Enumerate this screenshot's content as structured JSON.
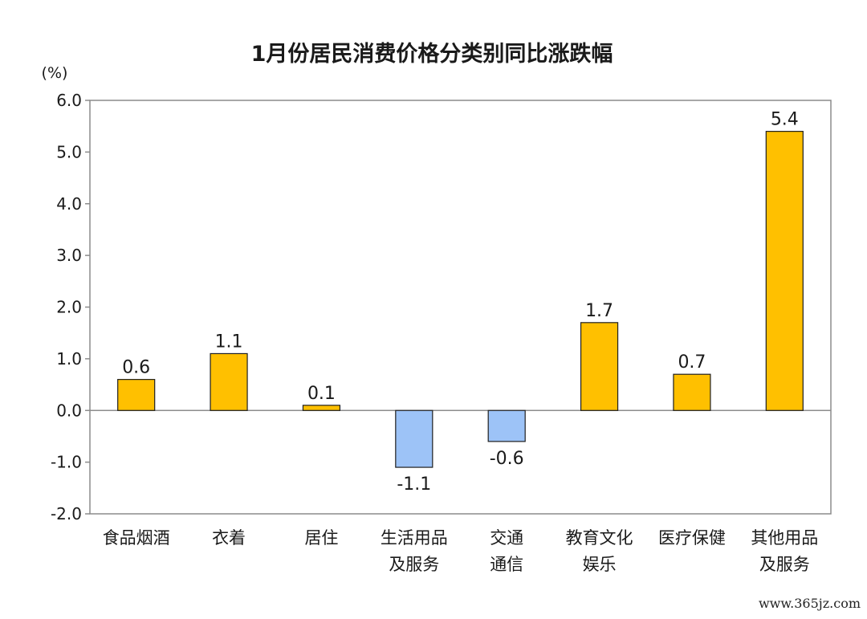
{
  "chart_data": {
    "type": "bar",
    "title": "1月份居民消费价格分类别同比涨跌幅",
    "ylabel": "(%)",
    "xlabel": "",
    "ylim": [
      -2.0,
      6.0
    ],
    "yticks": [
      6.0,
      5.0,
      4.0,
      3.0,
      2.0,
      1.0,
      0.0,
      -1.0,
      -2.0
    ],
    "ytick_labels": [
      "6.0",
      "5.0",
      "4.0",
      "3.0",
      "2.0",
      "1.0",
      "0.0",
      "-1.0",
      "-2.0"
    ],
    "grid": false,
    "categories": [
      [
        "食品烟酒"
      ],
      [
        "衣着"
      ],
      [
        "居住"
      ],
      [
        "生活用品",
        "及服务"
      ],
      [
        "交通",
        "通信"
      ],
      [
        "教育文化",
        "娱乐"
      ],
      [
        "医疗保健"
      ],
      [
        "其他用品",
        "及服务"
      ]
    ],
    "values": [
      0.6,
      1.1,
      0.1,
      -1.1,
      -0.6,
      1.7,
      0.7,
      5.4
    ],
    "value_labels": [
      "0.6",
      "1.1",
      "0.1",
      "-1.1",
      "-0.6",
      "1.7",
      "0.7",
      "5.4"
    ],
    "colors": {
      "positive": "#FFC000",
      "negative": "#9DC3F7",
      "bar_stroke": "#1f1f1f",
      "axis": "#8c8c8c",
      "text": "#1a1a1a"
    }
  },
  "watermark": "www.365jz.com"
}
